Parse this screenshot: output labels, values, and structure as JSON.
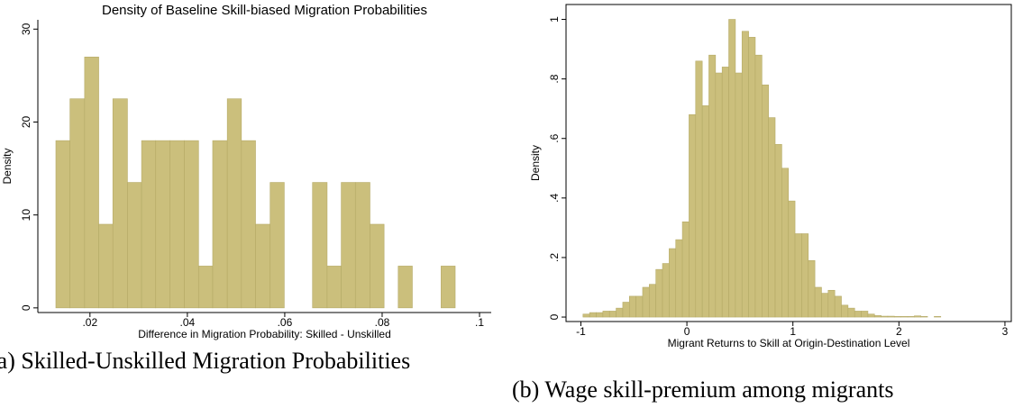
{
  "chart_data": [
    {
      "type": "histogram",
      "title": "Density of Baseline Skill-biased Migration Probabilities",
      "x_label": "Difference in Migration Probability: Skilled - Unskilled",
      "y_label": "Density",
      "caption": "(a) Skilled-Unskilled Migration Probabilities",
      "color": "#cbbf7c",
      "frame": false,
      "bins": [
        0.013,
        0.0159,
        0.0189,
        0.0218,
        0.0247,
        0.0277,
        0.0306,
        0.0335,
        0.0364,
        0.0394,
        0.0423,
        0.0452,
        0.0482,
        0.0511,
        0.054,
        0.057,
        0.0599,
        0.0628,
        0.0657,
        0.0687,
        0.0716,
        0.0745,
        0.0775,
        0.0804,
        0.0833,
        0.0862,
        0.0892,
        0.0921,
        0.095
      ],
      "values": [
        18,
        22.5,
        27,
        9,
        22.5,
        13.5,
        18,
        18,
        18,
        18,
        4.5,
        18,
        22.5,
        18,
        9,
        13.5,
        0,
        0,
        13.5,
        4.5,
        13.5,
        13.5,
        9,
        0,
        4.5,
        0,
        0,
        4.5
      ],
      "xlim": [
        0.0093,
        0.1024
      ],
      "ylim": [
        -0.5,
        31
      ],
      "xticks": [
        {
          "value": 0.02,
          "label": ".02"
        },
        {
          "value": 0.04,
          "label": ".04"
        },
        {
          "value": 0.06,
          "label": ".06"
        },
        {
          "value": 0.08,
          "label": ".08"
        },
        {
          "value": 0.1,
          "label": ".1"
        }
      ],
      "yticks": [
        0,
        10,
        20,
        30
      ]
    },
    {
      "type": "histogram",
      "x_label": "Migrant Returns to Skill at Origin-Destination Level",
      "y_label": "Density",
      "caption": "(b) Wage skill-premium among migrants",
      "color": "#cbbf7c",
      "frame": true,
      "bins": [
        -0.98,
        -0.9175,
        -0.855,
        -0.7925,
        -0.73,
        -0.6675,
        -0.605,
        -0.5425,
        -0.48,
        -0.4175,
        -0.355,
        -0.2925,
        -0.23,
        -0.1675,
        -0.105,
        -0.0425,
        0.02,
        0.0825,
        0.145,
        0.2075,
        0.27,
        0.3325,
        0.395,
        0.4575,
        0.52,
        0.5825,
        0.645,
        0.7075,
        0.77,
        0.8325,
        0.895,
        0.9575,
        1.02,
        1.0825,
        1.145,
        1.2075,
        1.27,
        1.3325,
        1.395,
        1.4575,
        1.52,
        1.5825,
        1.645,
        1.7075,
        1.77,
        1.8325,
        1.895,
        1.9575,
        2.02,
        2.0825,
        2.145,
        2.2075,
        2.27,
        2.3325,
        2.395
      ],
      "values": [
        0.01,
        0.015,
        0.015,
        0.02,
        0.02,
        0.03,
        0.05,
        0.07,
        0.07,
        0.1,
        0.11,
        0.16,
        0.18,
        0.23,
        0.26,
        0.32,
        0.68,
        0.86,
        0.71,
        0.88,
        0.82,
        0.84,
        1.0,
        0.82,
        0.96,
        0.94,
        0.88,
        0.78,
        0.67,
        0.58,
        0.5,
        0.39,
        0.28,
        0.28,
        0.19,
        0.1,
        0.08,
        0.09,
        0.07,
        0.04,
        0.03,
        0.02,
        0.02,
        0.01,
        0.005,
        0.003,
        0.003,
        0.002,
        0.002,
        0.002,
        0.004,
        0.002,
        0,
        0.002
      ],
      "xlim": [
        -1.14,
        3.06
      ],
      "ylim": [
        -0.015,
        1.05
      ],
      "xticks": [
        -1,
        0,
        1,
        2,
        3
      ],
      "yticks": [
        0,
        {
          "value": 0.2,
          "label": ".2"
        },
        {
          "value": 0.4,
          "label": ".4"
        },
        {
          "value": 0.6,
          "label": ".6"
        },
        {
          "value": 0.8,
          "label": ".8"
        },
        1
      ]
    }
  ]
}
